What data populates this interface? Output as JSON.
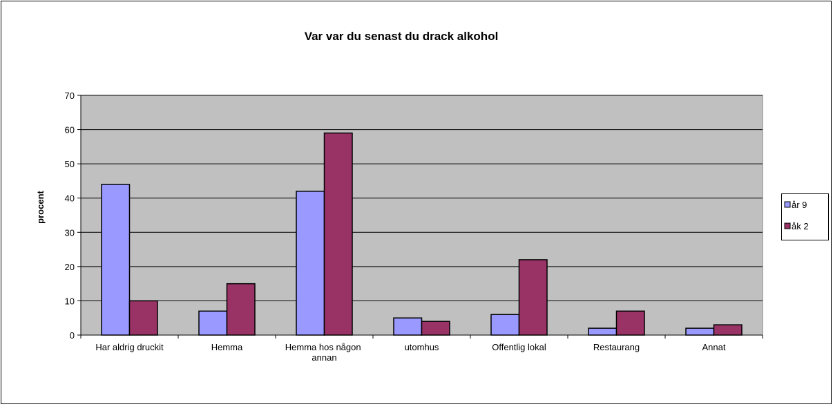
{
  "chart_data": {
    "type": "bar",
    "title": "Var var du senast du drack alkohol",
    "y_label": "procent",
    "categories": [
      "Har aldrig druckit",
      "Hemma",
      "Hemma hos någon annan",
      "utomhus",
      "Offentlig lokal",
      "Restaurang",
      "Annat"
    ],
    "series": [
      {
        "name": "år 9",
        "color": "#9999ff",
        "values": [
          44,
          7,
          42,
          5,
          6,
          2,
          2
        ]
      },
      {
        "name": "åk 2",
        "color": "#993366",
        "values": [
          10,
          15,
          59,
          4,
          22,
          7,
          3
        ]
      }
    ],
    "ylim": [
      0,
      70
    ],
    "yticks": [
      0,
      10,
      20,
      30,
      40,
      50,
      60,
      70
    ],
    "grid": true,
    "plot_background": "#c0c0c0",
    "legend": "right"
  }
}
